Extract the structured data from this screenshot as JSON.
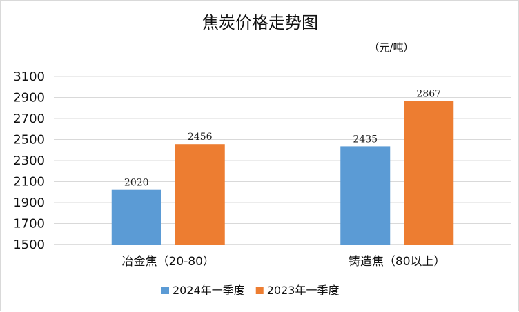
{
  "chart_data": {
    "type": "bar",
    "title": "焦炭价格走势图",
    "unit_label": "（元/吨）",
    "categories": [
      "冶金焦（20-80）",
      "铸造焦（80以上）"
    ],
    "series": [
      {
        "name": "2024年一季度",
        "color": "#5b9bd5",
        "values": [
          2020,
          2435
        ]
      },
      {
        "name": "2023年一季度",
        "color": "#ed7d31",
        "values": [
          2456,
          2867
        ]
      }
    ],
    "ylim": [
      1500,
      3100
    ],
    "yticks": [
      1500,
      1700,
      1900,
      2100,
      2300,
      2500,
      2700,
      2900,
      3100
    ],
    "grid": true,
    "legend": "bottom",
    "data_labels": true
  }
}
